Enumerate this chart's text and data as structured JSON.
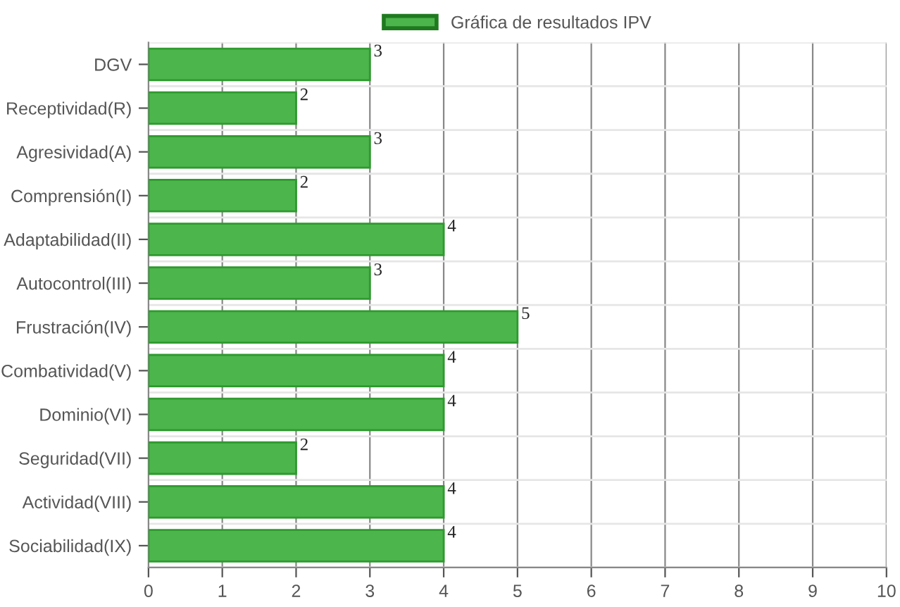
{
  "chart_data": {
    "type": "bar",
    "orientation": "horizontal",
    "categories": [
      "DGV",
      "Receptividad(R)",
      "Agresividad(A)",
      "Comprensión(I)",
      "Adaptabilidad(II)",
      "Autocontrol(III)",
      "Frustración(IV)",
      "Combatividad(V)",
      "Dominio(VI)",
      "Seguridad(VII)",
      "Actividad(VIII)",
      "Sociabilidad(IX)"
    ],
    "series": [
      {
        "name": "Gráfica de resultados IPV",
        "color": "#4cb54c",
        "values": [
          3,
          2,
          3,
          2,
          4,
          3,
          5,
          4,
          4,
          2,
          4,
          4
        ]
      }
    ],
    "xlim": [
      0,
      10
    ],
    "xticks": [
      0,
      1,
      2,
      3,
      4,
      5,
      6,
      7,
      8,
      9,
      10
    ],
    "grid": true,
    "legend": "top",
    "data_labels": true
  }
}
